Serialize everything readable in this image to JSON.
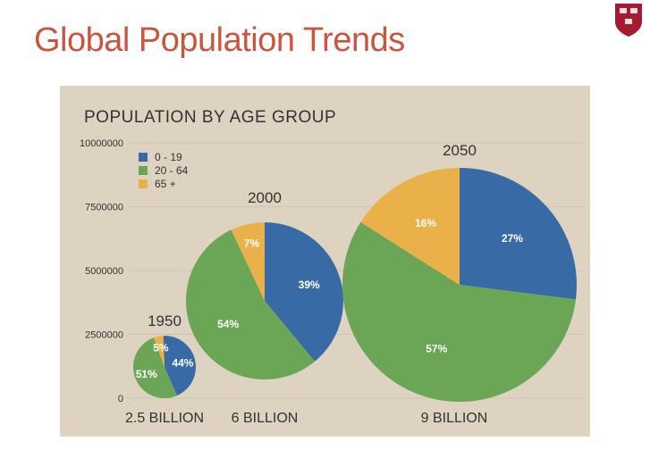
{
  "slide": {
    "title": "Global Population Trends"
  },
  "colors": {
    "title": "#c8553d",
    "crest": "#a51c30",
    "panel": "#ddd3c0",
    "gridline": "#cfc5b2"
  },
  "chart_data": {
    "type": "pie",
    "title": "POPULATION BY AGE GROUP",
    "xlabel": "",
    "ylabel": "",
    "ylim": [
      0,
      10000000
    ],
    "y_ticks": [
      "0",
      "2500000",
      "5000000",
      "7500000",
      "10000000"
    ],
    "grid": true,
    "legend_position": "top-left",
    "series": [
      {
        "name": "0  - 19",
        "color": "#386aa5"
      },
      {
        "name": "20 - 64",
        "color": "#6aa656"
      },
      {
        "name": "65 +",
        "color": "#eab14b"
      }
    ],
    "pies": [
      {
        "year": "1950",
        "total_label": "2.5 BILLION",
        "slices": [
          {
            "series": "0  - 19",
            "value": 44,
            "label": "44%"
          },
          {
            "series": "20 - 64",
            "value": 51,
            "label": "51%"
          },
          {
            "series": "65 +",
            "value": 5,
            "label": "5%"
          }
        ]
      },
      {
        "year": "2000",
        "total_label": "6 BILLION",
        "slices": [
          {
            "series": "0  - 19",
            "value": 39,
            "label": "39%"
          },
          {
            "series": "20 - 64",
            "value": 54,
            "label": "54%"
          },
          {
            "series": "65 +",
            "value": 7,
            "label": "7%"
          }
        ]
      },
      {
        "year": "2050",
        "total_label": "9 BILLION",
        "slices": [
          {
            "series": "0  - 19",
            "value": 27,
            "label": "27%"
          },
          {
            "series": "20 - 64",
            "value": 57,
            "label": "57%"
          },
          {
            "series": "65 +",
            "value": 16,
            "label": "16%"
          }
        ]
      }
    ]
  }
}
